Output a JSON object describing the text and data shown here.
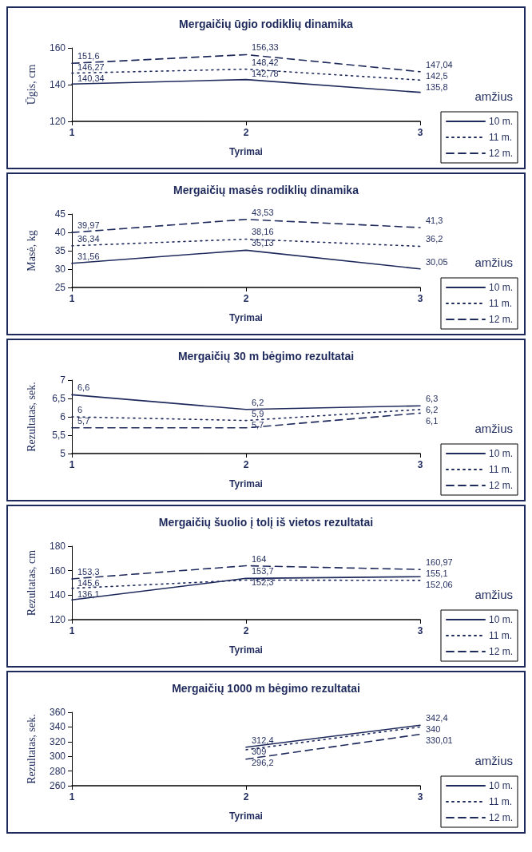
{
  "chart_data": [
    {
      "type": "line",
      "title": "Mergaičių ūgio rodiklių dinamika",
      "xlabel": "Tyrimai",
      "ylabel": "Ūgis, cm",
      "legend_title": "amžius",
      "legend": "bottom right",
      "marker": "none",
      "categories": [
        "1",
        "2",
        "3"
      ],
      "ylim": [
        120,
        160
      ],
      "yticks": [
        120,
        140,
        160
      ],
      "series": [
        {
          "name": "10 m.",
          "color": "#1f2a5c",
          "line_style": "solid",
          "values": [
            140.34,
            142.78,
            135.8
          ],
          "value_labels": [
            "140,34",
            "142,78",
            "135,8"
          ]
        },
        {
          "name": "11 m.",
          "color": "#1f2a5c",
          "line_style": "dotted",
          "values": [
            146.27,
            148.42,
            142.5
          ],
          "value_labels": [
            "146,27",
            "148,42",
            "142,5"
          ]
        },
        {
          "name": "12 m.",
          "color": "#1f2a5c",
          "line_style": "dashed",
          "values": [
            151.6,
            156.33,
            147.04
          ],
          "value_labels": [
            "151,6",
            "156,33",
            "147,04"
          ]
        }
      ]
    },
    {
      "type": "line",
      "title": "Mergaičių masės rodiklių dinamika",
      "xlabel": "Tyrimai",
      "ylabel": "Masė, kg",
      "legend_title": "amžius",
      "legend": "bottom right",
      "marker": "none",
      "categories": [
        "1",
        "2",
        "3"
      ],
      "ylim": [
        25,
        45
      ],
      "yticks": [
        25,
        30,
        35,
        40,
        45
      ],
      "series": [
        {
          "name": "10 m.",
          "color": "#1f2a5c",
          "line_style": "solid",
          "values": [
            31.56,
            35.13,
            30.05
          ],
          "value_labels": [
            "31,56",
            "35,13",
            "30,05"
          ]
        },
        {
          "name": "11 m.",
          "color": "#1f2a5c",
          "line_style": "dotted",
          "values": [
            36.34,
            38.16,
            36.2
          ],
          "value_labels": [
            "36,34",
            "38,16",
            "36,2"
          ]
        },
        {
          "name": "12 m.",
          "color": "#1f2a5c",
          "line_style": "dashed",
          "values": [
            39.97,
            43.53,
            41.3
          ],
          "value_labels": [
            "39,97",
            "43,53",
            "41,3"
          ]
        }
      ]
    },
    {
      "type": "line",
      "title": "Mergaičių 30 m bėgimo rezultatai",
      "xlabel": "Tyrimai",
      "ylabel": "Rezultatas, sek.",
      "legend_title": "amžius",
      "legend": "bottom right",
      "marker": "none",
      "categories": [
        "1",
        "2",
        "3"
      ],
      "ylim": [
        5,
        7
      ],
      "yticks": [
        {
          "value": 5,
          "label": "5"
        },
        {
          "value": 5.5,
          "label": "5,5"
        },
        {
          "value": 6,
          "label": "6"
        },
        {
          "value": 6.5,
          "label": "6,5"
        },
        {
          "value": 7,
          "label": "7"
        }
      ],
      "series": [
        {
          "name": "10 m.",
          "color": "#1f2a5c",
          "line_style": "solid",
          "values": [
            6.6,
            6.2,
            6.3
          ],
          "value_labels": [
            "6,6",
            "6,2",
            "6,3"
          ]
        },
        {
          "name": "11 m.",
          "color": "#1f2a5c",
          "line_style": "dotted",
          "values": [
            6,
            5.9,
            6.2
          ],
          "value_labels": [
            "6",
            "5,9",
            "6,2"
          ]
        },
        {
          "name": "12 m.",
          "color": "#1f2a5c",
          "line_style": "dashed",
          "values": [
            5.7,
            5.7,
            6.1
          ],
          "value_labels": [
            "5,7",
            "5,7",
            "6,1"
          ]
        }
      ]
    },
    {
      "type": "line",
      "title": "Mergaičių šuolio į tolį iš vietos rezultatai",
      "xlabel": "Tyrimai",
      "ylabel": "Rezultatas, cm",
      "legend_title": "amžius",
      "legend": "bottom right",
      "marker": "none",
      "categories": [
        "1",
        "2",
        "3"
      ],
      "ylim": [
        120,
        180
      ],
      "yticks": [
        120,
        140,
        160,
        180
      ],
      "series": [
        {
          "name": "10 m.",
          "color": "#1f2a5c",
          "line_style": "solid",
          "values": [
            136.1,
            153.7,
            155.1
          ],
          "value_labels": [
            "136,1",
            "153,7",
            "155,1"
          ]
        },
        {
          "name": "11 m.",
          "color": "#1f2a5c",
          "line_style": "dotted",
          "values": [
            145.6,
            152.3,
            152.06
          ],
          "value_labels": [
            "145,6",
            "152,3",
            "152,06"
          ]
        },
        {
          "name": "12 m.",
          "color": "#1f2a5c",
          "line_style": "dashed",
          "values": [
            153.3,
            164,
            160.97
          ],
          "value_labels": [
            "153,3",
            "164",
            "160,97"
          ]
        }
      ]
    },
    {
      "type": "line",
      "title": "Mergaičių 1000 m bėgimo rezultatai",
      "xlabel": "Tyrimai",
      "ylabel": "Rezultatas, sek.",
      "legend_title": "amžius",
      "legend": "bottom right",
      "marker": "none",
      "categories": [
        "1",
        "2",
        "3"
      ],
      "ylim": [
        260,
        360
      ],
      "yticks": [
        260,
        280,
        300,
        320,
        340,
        360
      ],
      "series": [
        {
          "name": "10 m.",
          "color": "#1f2a5c",
          "line_style": "solid",
          "values": [
            null,
            312.4,
            342.4
          ],
          "value_labels": [
            null,
            "312,4",
            "342,4"
          ]
        },
        {
          "name": "11 m.",
          "color": "#1f2a5c",
          "line_style": "dotted",
          "values": [
            null,
            309,
            340
          ],
          "value_labels": [
            null,
            "309",
            "340"
          ]
        },
        {
          "name": "12 m.",
          "color": "#1f2a5c",
          "line_style": "dashed",
          "values": [
            null,
            296.2,
            330.01
          ],
          "value_labels": [
            null,
            "296,2",
            "330,01"
          ]
        }
      ]
    }
  ]
}
